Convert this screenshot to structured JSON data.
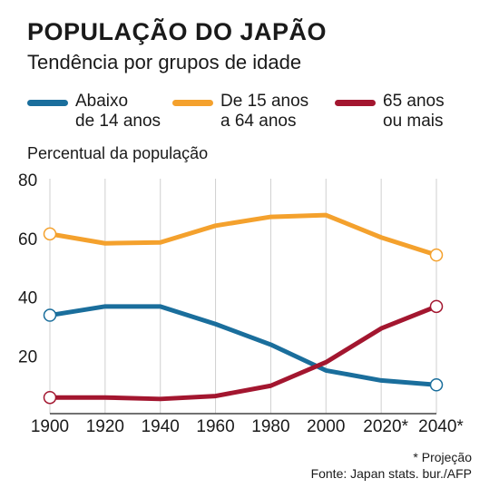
{
  "header": {
    "title": "POPULAÇÃO DO JAPÃO",
    "subtitle": "Tendência por grupos de idade"
  },
  "legend": [
    {
      "line1": "Abaixo",
      "line2": "de 14 anos",
      "color": "#1a6e9c"
    },
    {
      "line1": "De 15 anos",
      "line2": "a 64 anos",
      "color": "#f4a12d"
    },
    {
      "line1": "65 anos",
      "line2": "ou mais",
      "color": "#a3162f"
    }
  ],
  "footer": {
    "footnote": "* Projeção",
    "source": "Fonte: Japan stats. bur./AFP"
  },
  "chart_data": {
    "type": "line",
    "ylabel": "Percentual da população",
    "xlabel": "",
    "categories": [
      "1900",
      "1920",
      "1940",
      "1960",
      "1980",
      "2000",
      "2020*",
      "2040*"
    ],
    "ylim": [
      0,
      80
    ],
    "yticks": [
      20,
      40,
      60,
      80
    ],
    "grid": "vertical",
    "series": [
      {
        "name": "Abaixo de 14 anos",
        "color": "#1a6e9c",
        "values": [
          33.5,
          36.5,
          36.5,
          30.5,
          23.5,
          14.7,
          11.3,
          9.8
        ]
      },
      {
        "name": "De 15 anos a 64 anos",
        "color": "#f4a12d",
        "values": [
          61.2,
          58.0,
          58.3,
          64.0,
          67.0,
          67.6,
          60.0,
          54.0
        ]
      },
      {
        "name": "65 anos ou mais",
        "color": "#a3162f",
        "values": [
          5.5,
          5.5,
          5.0,
          6.0,
          9.5,
          17.5,
          29.0,
          36.5
        ]
      }
    ]
  }
}
